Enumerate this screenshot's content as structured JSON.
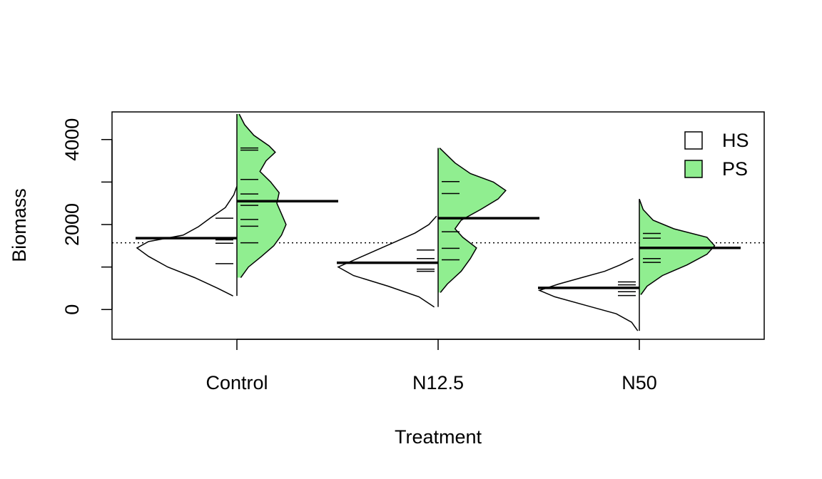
{
  "chart_data": {
    "type": "beanplot",
    "title": "",
    "xlabel": "Treatment",
    "ylabel": "Biomass",
    "categories": [
      "Control",
      "N12.5",
      "N50"
    ],
    "ylim": [
      -700,
      4650
    ],
    "yticks": [
      0,
      1000,
      2000,
      3000,
      4000
    ],
    "ytick_labels": [
      "0",
      "",
      "2000",
      "",
      "4000"
    ],
    "overall_mean": 1570,
    "legend": {
      "position": "top-right",
      "entries": [
        {
          "label": "HS",
          "color": "#ffffff"
        },
        {
          "label": "PS",
          "color": "#90ee90"
        }
      ]
    },
    "series": [
      {
        "name": "HS",
        "side": "left",
        "color": "#ffffff",
        "groups": [
          {
            "category": "Control",
            "mean": 1680,
            "points": [
              1080,
              1560,
              1640,
              2150
            ],
            "density": [
              [
                320,
                0.05
              ],
              [
                500,
                0.25
              ],
              [
                750,
                0.55
              ],
              [
                1000,
                0.9
              ],
              [
                1250,
                1.15
              ],
              [
                1450,
                1.3
              ],
              [
                1600,
                1.15
              ],
              [
                1750,
                0.7
              ],
              [
                1950,
                0.5
              ],
              [
                2150,
                0.35
              ],
              [
                2400,
                0.15
              ],
              [
                2700,
                0.04
              ],
              [
                2900,
                0
              ]
            ]
          },
          {
            "category": "N12.5",
            "mean": 1100,
            "points": [
              900,
              950,
              1100,
              1200,
              1400
            ],
            "density": [
              [
                60,
                0.05
              ],
              [
                300,
                0.25
              ],
              [
                550,
                0.65
              ],
              [
                800,
                1.1
              ],
              [
                1000,
                1.3
              ],
              [
                1200,
                1.05
              ],
              [
                1400,
                0.8
              ],
              [
                1600,
                0.55
              ],
              [
                1800,
                0.3
              ],
              [
                2000,
                0.12
              ],
              [
                2200,
                0.02
              ]
            ]
          },
          {
            "category": "N50",
            "mean": 510,
            "points": [
              330,
              420,
              500,
              580,
              650
            ],
            "density": [
              [
                -500,
                0.02
              ],
              [
                -300,
                0.1
              ],
              [
                -100,
                0.3
              ],
              [
                100,
                0.7
              ],
              [
                300,
                1.1
              ],
              [
                450,
                1.3
              ],
              [
                600,
                1.05
              ],
              [
                750,
                0.75
              ],
              [
                900,
                0.45
              ],
              [
                1050,
                0.25
              ],
              [
                1200,
                0.08
              ]
            ]
          }
        ]
      },
      {
        "name": "PS",
        "side": "right",
        "color": "#90ee90",
        "groups": [
          {
            "category": "Control",
            "mean": 2550,
            "points": [
              1570,
              1960,
              2120,
              2450,
              2720,
              3060,
              3750,
              3800
            ],
            "density": [
              [
                750,
                0.05
              ],
              [
                1000,
                0.15
              ],
              [
                1250,
                0.32
              ],
              [
                1500,
                0.48
              ],
              [
                1750,
                0.58
              ],
              [
                2000,
                0.64
              ],
              [
                2250,
                0.58
              ],
              [
                2500,
                0.52
              ],
              [
                2750,
                0.55
              ],
              [
                3000,
                0.44
              ],
              [
                3250,
                0.3
              ],
              [
                3500,
                0.38
              ],
              [
                3700,
                0.5
              ],
              [
                3850,
                0.42
              ],
              [
                4100,
                0.22
              ],
              [
                4350,
                0.1
              ],
              [
                4600,
                0.03
              ]
            ]
          },
          {
            "category": "N12.5",
            "mean": 2150,
            "points": [
              1170,
              1440,
              1830,
              2730,
              3010
            ],
            "density": [
              [
                400,
                0.03
              ],
              [
                600,
                0.12
              ],
              [
                900,
                0.3
              ],
              [
                1200,
                0.42
              ],
              [
                1450,
                0.5
              ],
              [
                1700,
                0.32
              ],
              [
                1900,
                0.22
              ],
              [
                2100,
                0.3
              ],
              [
                2350,
                0.55
              ],
              [
                2600,
                0.78
              ],
              [
                2800,
                0.88
              ],
              [
                3000,
                0.72
              ],
              [
                3200,
                0.42
              ],
              [
                3450,
                0.22
              ],
              [
                3800,
                0.02
              ]
            ]
          },
          {
            "category": "N50",
            "mean": 1450,
            "points": [
              1110,
              1200,
              1680,
              1790
            ],
            "density": [
              [
                350,
                0.02
              ],
              [
                550,
                0.1
              ],
              [
                800,
                0.3
              ],
              [
                1050,
                0.62
              ],
              [
                1300,
                0.88
              ],
              [
                1500,
                0.98
              ],
              [
                1700,
                0.88
              ],
              [
                1900,
                0.45
              ],
              [
                2100,
                0.18
              ],
              [
                2350,
                0.05
              ],
              [
                2600,
                0
              ]
            ]
          }
        ]
      }
    ]
  }
}
